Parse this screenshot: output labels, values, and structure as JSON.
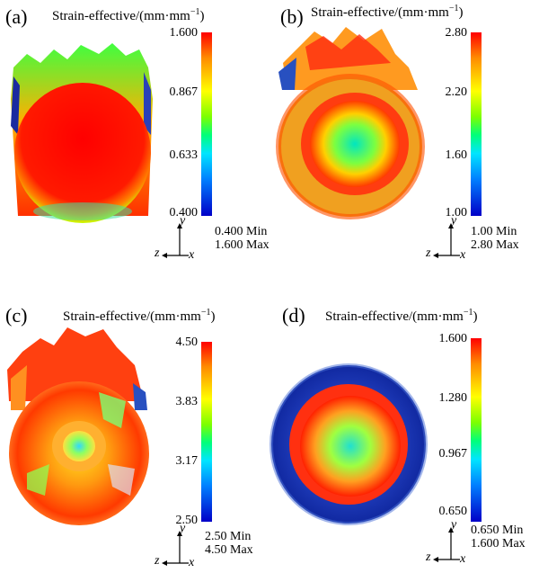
{
  "panels": [
    {
      "label": "(a)",
      "title": "Strain-effective/(mm·mm",
      "title_sup": "−1",
      "title_close": ")",
      "ticks": [
        "1.600",
        "0.867",
        "0.633",
        "0.400"
      ],
      "min": "0.400 Min",
      "max": "1.600 Max"
    },
    {
      "label": "(b)",
      "title": "Strain-effective/(mm·mm",
      "title_sup": "−1",
      "title_close": ")",
      "ticks": [
        "2.80",
        "2.20",
        "1.60",
        "1.00"
      ],
      "min": "1.00 Min",
      "max": "2.80 Max"
    },
    {
      "label": "(c)",
      "title": "Strain-effective/(mm·mm",
      "title_sup": "−1",
      "title_close": ")",
      "ticks": [
        "4.50",
        "3.83",
        "3.17",
        "2.50"
      ],
      "min": "2.50 Min",
      "max": "4.50 Max"
    },
    {
      "label": "(d)",
      "title": "Strain-effective/(mm·mm",
      "title_sup": "−1",
      "title_close": ")",
      "ticks": [
        "1.600",
        "1.280",
        "0.967",
        "0.650"
      ],
      "min": "0.650 Min",
      "max": "1.600 Max"
    }
  ],
  "axes": {
    "y": "y",
    "z": "z",
    "x": "x"
  },
  "colorbar_colors": [
    "#ff0000",
    "#ff8c00",
    "#ffff00",
    "#7cff00",
    "#00ff7a",
    "#00e5ff",
    "#0080ff",
    "#0000c8"
  ]
}
